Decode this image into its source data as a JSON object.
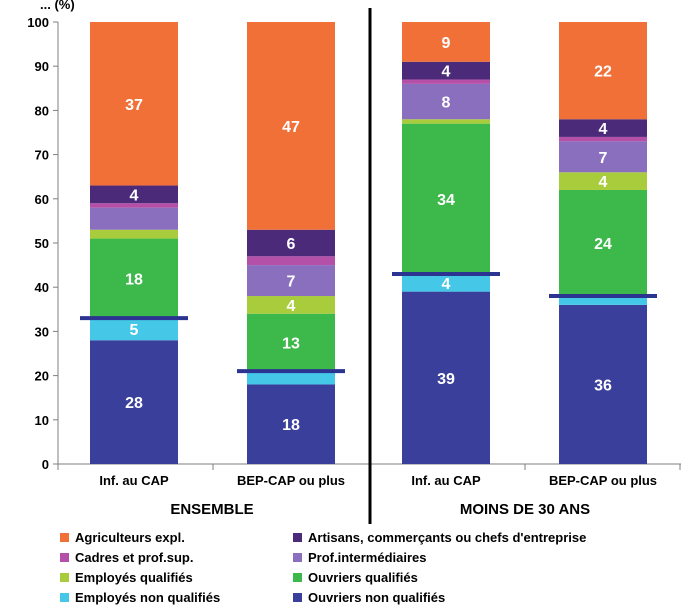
{
  "header_partial": "... (%)",
  "chart_data": {
    "type": "bar",
    "stacked": true,
    "ylim": [
      0,
      100
    ],
    "yticks": [
      0,
      10,
      20,
      30,
      40,
      50,
      60,
      70,
      80,
      90,
      100
    ],
    "groups": [
      {
        "name": "ENSEMBLE",
        "categories": [
          "Inf. au CAP",
          "BEP-CAP ou plus"
        ]
      },
      {
        "name": "MOINS DE 30 ANS",
        "categories": [
          "Inf. au CAP",
          "BEP-CAP ou plus"
        ]
      }
    ],
    "series": [
      {
        "name": "Ouvriers non qualifiés",
        "color": "#3a3f9c",
        "values": [
          28,
          18,
          39,
          36
        ],
        "labels": [
          "28",
          "18",
          "39",
          "36"
        ]
      },
      {
        "name": "Employés non qualifiés",
        "color": "#45c8e8",
        "values": [
          5,
          3,
          4,
          2
        ],
        "labels": [
          "5",
          "",
          "4",
          ""
        ]
      },
      {
        "name": "Ouvriers qualifiés",
        "color": "#3cb94a",
        "values": [
          18,
          13,
          34,
          24
        ],
        "labels": [
          "18",
          "13",
          "34",
          "24"
        ]
      },
      {
        "name": "Employés qualifiés",
        "color": "#a8cc3c",
        "values": [
          2,
          4,
          1,
          4
        ],
        "labels": [
          "",
          "4",
          "",
          "4"
        ]
      },
      {
        "name": "Prof.intermédiaires",
        "color": "#8a6fbf",
        "values": [
          5,
          7,
          8,
          7
        ],
        "labels": [
          "",
          "7",
          "8",
          "7"
        ]
      },
      {
        "name": "Cadres et prof.sup.",
        "color": "#b550a8",
        "values": [
          1,
          2,
          1,
          1
        ],
        "labels": [
          "",
          "",
          "",
          ""
        ]
      },
      {
        "name": "Artisans, commerçants ou chefs d'entreprise",
        "color": "#4b2a7a",
        "values": [
          4,
          6,
          4,
          4
        ],
        "labels": [
          "4",
          "6",
          "4",
          "4"
        ]
      },
      {
        "name": "Agriculteurs expl.",
        "color": "#f07038",
        "values": [
          37,
          47,
          9,
          22
        ],
        "labels": [
          "37",
          "47",
          "9",
          "22"
        ]
      }
    ],
    "markers": [
      33,
      21,
      43,
      38
    ],
    "legend": {
      "position": "bottom",
      "columns": [
        [
          "Agriculteurs expl.",
          "Cadres et prof.sup.",
          "Employés qualifiés",
          "Employés non qualifiés"
        ],
        [
          "Artisans, commerçants ou chefs d'entreprise",
          "Prof.intermédiaires",
          "Ouvriers qualifiés",
          "Ouvriers non qualifiés"
        ]
      ]
    },
    "marker_color": "#2b3490",
    "divider_color": "#000000"
  }
}
